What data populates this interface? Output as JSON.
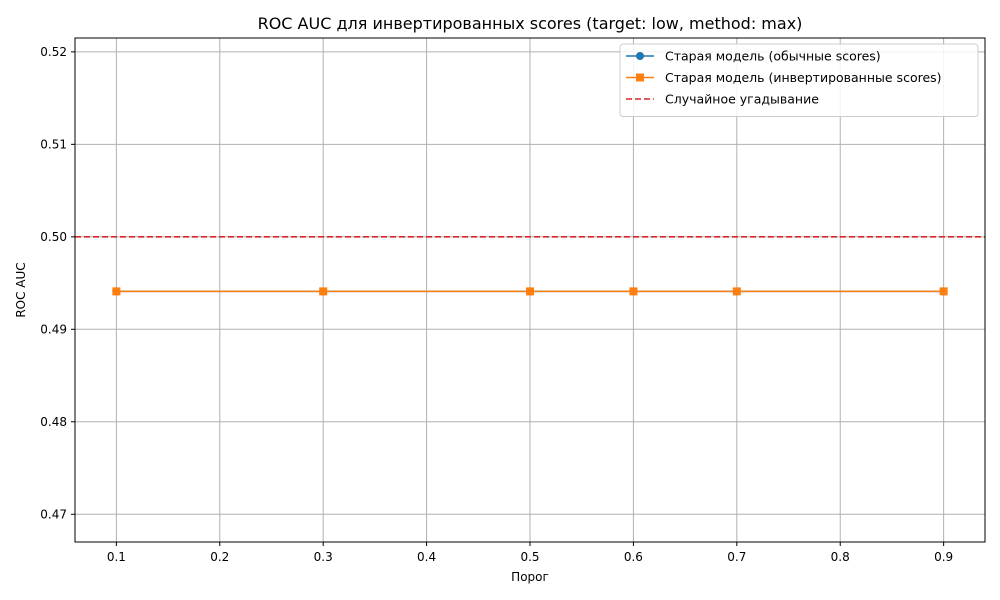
{
  "chart_data": {
    "type": "line",
    "title": "ROC AUC для инвертированных scores (target: low, method: max)",
    "xlabel": "Порог",
    "ylabel": "ROC AUC",
    "x": [
      0.1,
      0.3,
      0.5,
      0.6,
      0.7,
      0.9
    ],
    "xlim": [
      0.06,
      0.94
    ],
    "ylim": [
      0.467,
      0.5215
    ],
    "xticks": [
      0.1,
      0.2,
      0.3,
      0.4,
      0.5,
      0.6,
      0.7,
      0.8,
      0.9
    ],
    "xtick_labels": [
      "0.1",
      "0.2",
      "0.3",
      "0.4",
      "0.5",
      "0.6",
      "0.7",
      "0.8",
      "0.9"
    ],
    "yticks": [
      0.47,
      0.48,
      0.49,
      0.5,
      0.51,
      0.52
    ],
    "ytick_labels": [
      "0.47",
      "0.48",
      "0.49",
      "0.50",
      "0.51",
      "0.52"
    ],
    "grid": true,
    "legend_position": "top-right",
    "series": [
      {
        "name": "Старая модель (обычные scores)",
        "color": "#1f77b4",
        "marker": "circle",
        "values": [
          0.4941,
          0.4941,
          0.4941,
          0.4941,
          0.4941,
          0.4941
        ]
      },
      {
        "name": "Старая модель (инвертированные scores)",
        "color": "#ff7f0e",
        "marker": "square",
        "values": [
          0.4941,
          0.4941,
          0.4941,
          0.4941,
          0.4941,
          0.4941
        ]
      }
    ],
    "reference_lines": [
      {
        "name": "Случайное угадывание",
        "y": 0.5,
        "color": "#d62728",
        "style": "dashed"
      }
    ]
  }
}
